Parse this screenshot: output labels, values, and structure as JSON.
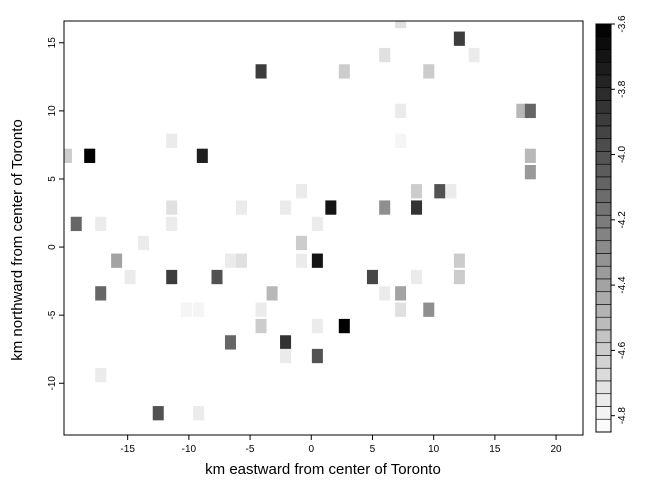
{
  "chart_data": {
    "type": "heatmap",
    "title": "",
    "xlabel": "km eastward from center of Toronto",
    "ylabel": "km northward from center of Toronto",
    "xlim": [
      -20.2,
      22.2
    ],
    "ylim": [
      -13.8,
      16.6
    ],
    "xticks": [
      -15,
      -10,
      -5,
      0,
      5,
      10,
      15,
      20
    ],
    "yticks": [
      -10,
      -5,
      0,
      5,
      10,
      15
    ],
    "xtick_labels": [
      "-15",
      "-10",
      "-5",
      "0",
      "5",
      "10",
      "15",
      "20"
    ],
    "ytick_labels": [
      "-10",
      "-5",
      "0",
      "5",
      "10",
      "15"
    ],
    "cell_width": 0.9,
    "cell_height": 1.05,
    "cells": [
      {
        "x": -18.1,
        "y": 6.7,
        "v": -3.6
      },
      {
        "x": -8.9,
        "y": 6.7,
        "v": -3.75
      },
      {
        "x": 12.1,
        "y": 15.3,
        "v": -3.9
      },
      {
        "x": -4.1,
        "y": 12.9,
        "v": -3.9
      },
      {
        "x": 2.7,
        "y": 12.9,
        "v": -4.6
      },
      {
        "x": 6.0,
        "y": 14.1,
        "v": -4.7
      },
      {
        "x": 9.6,
        "y": 12.9,
        "v": -4.6
      },
      {
        "x": 13.3,
        "y": 14.1,
        "v": -4.75
      },
      {
        "x": 7.3,
        "y": 16.6,
        "v": -4.7
      },
      {
        "x": 7.3,
        "y": 10.0,
        "v": -4.75
      },
      {
        "x": 17.2,
        "y": 10.0,
        "v": -4.5
      },
      {
        "x": 17.9,
        "y": 10.0,
        "v": -4.1
      },
      {
        "x": -11.4,
        "y": 7.8,
        "v": -4.75
      },
      {
        "x": 7.3,
        "y": 7.8,
        "v": -4.8
      },
      {
        "x": -20.0,
        "y": 6.7,
        "v": -4.6
      },
      {
        "x": 17.9,
        "y": 6.7,
        "v": -4.5
      },
      {
        "x": 17.9,
        "y": 5.5,
        "v": -4.35
      },
      {
        "x": -0.8,
        "y": 4.1,
        "v": -4.75
      },
      {
        "x": 8.6,
        "y": 4.1,
        "v": -4.6
      },
      {
        "x": 10.5,
        "y": 4.1,
        "v": -4.0
      },
      {
        "x": 11.4,
        "y": 4.1,
        "v": -4.75
      },
      {
        "x": -11.4,
        "y": 2.9,
        "v": -4.7
      },
      {
        "x": -5.7,
        "y": 2.9,
        "v": -4.75
      },
      {
        "x": -2.1,
        "y": 2.9,
        "v": -4.75
      },
      {
        "x": 1.6,
        "y": 2.9,
        "v": -3.7
      },
      {
        "x": 6.0,
        "y": 2.9,
        "v": -4.3
      },
      {
        "x": 8.6,
        "y": 2.9,
        "v": -3.85
      },
      {
        "x": -19.2,
        "y": 1.7,
        "v": -4.1
      },
      {
        "x": -17.2,
        "y": 1.7,
        "v": -4.75
      },
      {
        "x": -11.4,
        "y": 1.7,
        "v": -4.75
      },
      {
        "x": 0.5,
        "y": 1.7,
        "v": -4.75
      },
      {
        "x": -13.7,
        "y": 0.3,
        "v": -4.75
      },
      {
        "x": -0.8,
        "y": 0.3,
        "v": -4.6
      },
      {
        "x": -15.9,
        "y": -1.0,
        "v": -4.4
      },
      {
        "x": -6.6,
        "y": -1.0,
        "v": -4.75
      },
      {
        "x": -5.7,
        "y": -1.0,
        "v": -4.7
      },
      {
        "x": -0.8,
        "y": -1.0,
        "v": -4.75
      },
      {
        "x": 0.5,
        "y": -1.0,
        "v": -3.7
      },
      {
        "x": 12.1,
        "y": -1.0,
        "v": -4.6
      },
      {
        "x": -11.4,
        "y": -2.2,
        "v": -3.9
      },
      {
        "x": -14.8,
        "y": -2.2,
        "v": -4.75
      },
      {
        "x": -7.7,
        "y": -2.2,
        "v": -4.0
      },
      {
        "x": 5.0,
        "y": -2.2,
        "v": -3.95
      },
      {
        "x": 8.6,
        "y": -2.2,
        "v": -4.75
      },
      {
        "x": 12.1,
        "y": -2.2,
        "v": -4.6
      },
      {
        "x": -17.2,
        "y": -3.4,
        "v": -4.1
      },
      {
        "x": -3.2,
        "y": -3.4,
        "v": -4.5
      },
      {
        "x": 6.0,
        "y": -3.4,
        "v": -4.75
      },
      {
        "x": 7.3,
        "y": -3.4,
        "v": -4.4
      },
      {
        "x": -10.2,
        "y": -4.6,
        "v": -4.8
      },
      {
        "x": -9.2,
        "y": -4.6,
        "v": -4.8
      },
      {
        "x": -4.1,
        "y": -4.6,
        "v": -4.75
      },
      {
        "x": 7.3,
        "y": -4.6,
        "v": -4.7
      },
      {
        "x": 9.6,
        "y": -4.6,
        "v": -4.3
      },
      {
        "x": -4.1,
        "y": -5.8,
        "v": -4.6
      },
      {
        "x": 0.5,
        "y": -5.8,
        "v": -4.75
      },
      {
        "x": 2.7,
        "y": -5.8,
        "v": -3.6
      },
      {
        "x": -6.6,
        "y": -7.0,
        "v": -4.1
      },
      {
        "x": -2.1,
        "y": -7.0,
        "v": -3.85
      },
      {
        "x": -2.1,
        "y": -8.0,
        "v": -4.75
      },
      {
        "x": 0.5,
        "y": -8.0,
        "v": -4.0
      },
      {
        "x": -17.2,
        "y": -9.4,
        "v": -4.75
      },
      {
        "x": -12.5,
        "y": -12.2,
        "v": -4.0
      },
      {
        "x": -9.2,
        "y": -12.2,
        "v": -4.75
      }
    ],
    "colorbar": {
      "min": -4.85,
      "max": -3.6,
      "ticks": [
        -3.6,
        -3.8,
        -4.0,
        -4.2,
        -4.4,
        -4.6,
        -4.8
      ],
      "tick_labels": [
        "-3.6",
        "-3.8",
        "-4.0",
        "-4.2",
        "-4.4",
        "-4.6",
        "-4.8"
      ],
      "color_low": "#ffffff",
      "color_high": "#000000"
    },
    "grid": false,
    "legend": "colorbar-right"
  }
}
